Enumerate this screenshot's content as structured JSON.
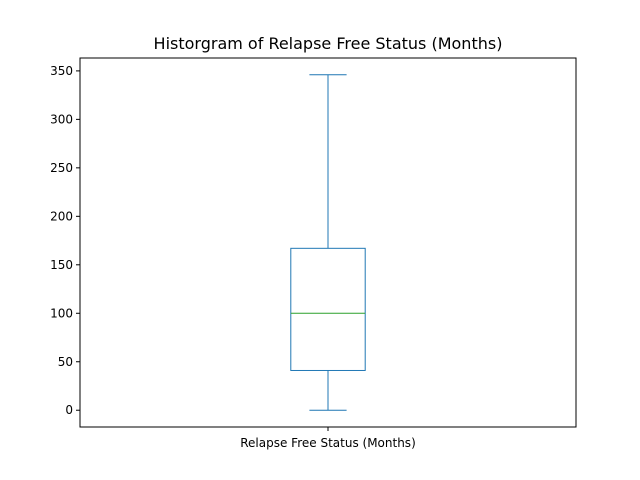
{
  "chart_data": {
    "type": "box",
    "title": "Historgram of Relapse Free Status (Months)",
    "categories": [
      "Relapse Free Status (Months)"
    ],
    "boxes": [
      {
        "name": "Relapse Free Status (Months)",
        "whisker_low": 0,
        "q1": 41,
        "median": 100,
        "q3": 167,
        "whisker_high": 346
      }
    ],
    "yticks": [
      0,
      50,
      100,
      150,
      200,
      250,
      300,
      350
    ],
    "ylim": [
      -17.3,
      363.3
    ],
    "grid": false,
    "colors": {
      "box": "#1f77b4",
      "median": "#2ca02c",
      "axes": "#000000"
    }
  }
}
